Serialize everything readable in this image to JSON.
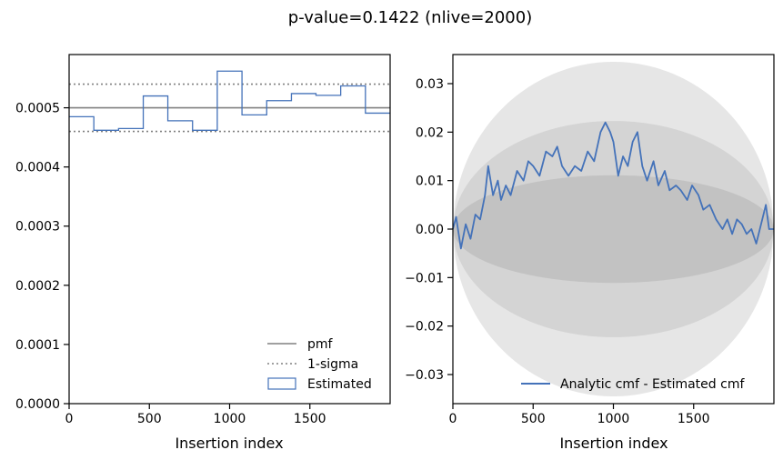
{
  "title": "p-value=0.1422 (nlive=2000)",
  "chart_data": [
    {
      "type": "step",
      "xlabel": "Insertion index",
      "ylabel": "",
      "xlim": [
        0,
        2000
      ],
      "ylim": [
        0,
        0.00059
      ],
      "xticks": [
        0,
        500,
        1000,
        1500
      ],
      "xtick_labels": [
        "0",
        "500",
        "1000",
        "1500"
      ],
      "yticks": [
        0,
        0.0001,
        0.0002,
        0.0003,
        0.0004,
        0.0005
      ],
      "ytick_labels": [
        "0.0000",
        "0.0001",
        "0.0002",
        "0.0003",
        "0.0004",
        "0.0005"
      ],
      "pmf": 0.0005,
      "sigma_upper": 0.00054,
      "sigma_lower": 0.00046,
      "bin_edges": [
        0,
        154,
        308,
        462,
        615,
        769,
        923,
        1077,
        1231,
        1385,
        1538,
        1692,
        1846,
        2000
      ],
      "estimated": [
        0.000485,
        0.000462,
        0.000465,
        0.00052,
        0.000478,
        0.000462,
        0.000562,
        0.000488,
        0.000512,
        0.000524,
        0.000521,
        0.000537,
        0.000491
      ],
      "legend_position": "lower right",
      "legend": [
        "pmf",
        "1-sigma",
        "Estimated"
      ],
      "colors": {
        "pmf": "#808080",
        "sigma": "#808080",
        "estimated": "#4472b9"
      }
    },
    {
      "type": "line",
      "xlabel": "Insertion index",
      "ylabel": "",
      "xlim": [
        0,
        2000
      ],
      "ylim": [
        -0.036,
        0.036
      ],
      "xticks": [
        0,
        500,
        1000,
        1500
      ],
      "xtick_labels": [
        "0",
        "500",
        "1000",
        "1500"
      ],
      "yticks": [
        -0.03,
        -0.02,
        -0.01,
        0.0,
        0.01,
        0.02,
        0.03
      ],
      "ytick_labels": [
        "−0.03",
        "−0.02",
        "−0.01",
        "0.00",
        "0.01",
        "0.02",
        "0.03"
      ],
      "bands": [
        {
          "label": "",
          "amplitude": 0.0345,
          "color": "#e3e3e3"
        },
        {
          "label": "",
          "amplitude": 0.0223,
          "color": "#d1d1d1"
        },
        {
          "label": "",
          "amplitude": 0.0111,
          "color": "#c0c0c0"
        }
      ],
      "series": [
        {
          "name": "Analytic cmf - Estimated cmf",
          "color": "#4472b9",
          "x": [
            0,
            20,
            50,
            80,
            110,
            140,
            170,
            200,
            220,
            250,
            280,
            300,
            330,
            360,
            400,
            440,
            470,
            500,
            540,
            580,
            620,
            650,
            680,
            720,
            760,
            800,
            840,
            880,
            920,
            950,
            980,
            1000,
            1030,
            1060,
            1090,
            1120,
            1150,
            1180,
            1210,
            1250,
            1280,
            1320,
            1350,
            1390,
            1420,
            1460,
            1490,
            1530,
            1560,
            1600,
            1640,
            1680,
            1710,
            1740,
            1770,
            1800,
            1830,
            1860,
            1890,
            1920,
            1950,
            1970,
            2000
          ],
          "y": [
            0.0,
            0.0025,
            -0.004,
            0.001,
            -0.002,
            0.003,
            0.002,
            0.007,
            0.013,
            0.007,
            0.01,
            0.006,
            0.009,
            0.007,
            0.012,
            0.01,
            0.014,
            0.013,
            0.011,
            0.016,
            0.015,
            0.017,
            0.013,
            0.011,
            0.013,
            0.012,
            0.016,
            0.014,
            0.02,
            0.022,
            0.02,
            0.018,
            0.011,
            0.015,
            0.013,
            0.018,
            0.02,
            0.013,
            0.01,
            0.014,
            0.009,
            0.012,
            0.008,
            0.009,
            0.008,
            0.006,
            0.009,
            0.007,
            0.004,
            0.005,
            0.002,
            0.0,
            0.002,
            -0.001,
            0.002,
            0.001,
            -0.001,
            0.0,
            -0.003,
            0.001,
            0.005,
            0.0,
            0.0
          ]
        }
      ],
      "legend_position": "lower right"
    }
  ]
}
